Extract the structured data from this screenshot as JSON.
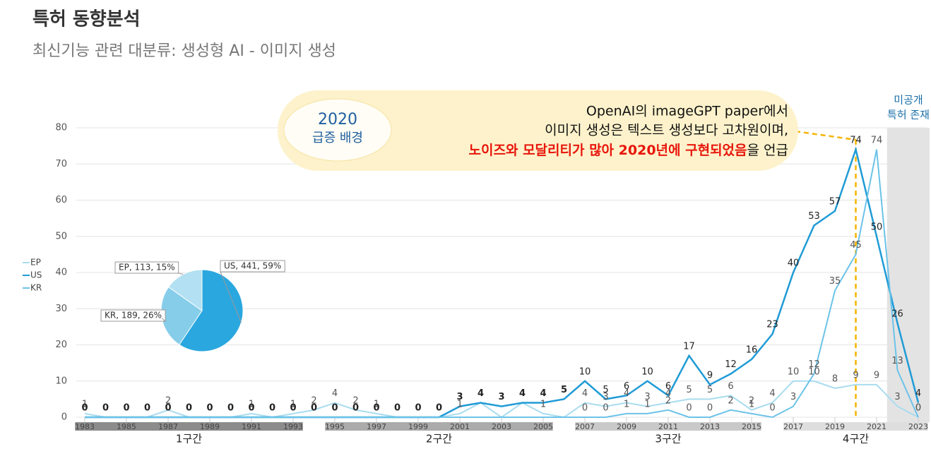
{
  "header": {
    "title": "특허 동향분석",
    "subtitle": "최신기능 관련 대분류: 생성형 AI - 이미지 생성"
  },
  "chart_data": [
    {
      "type": "line",
      "x": [
        1983,
        1984,
        1985,
        1986,
        1987,
        1988,
        1989,
        1990,
        1991,
        1992,
        1993,
        1994,
        1995,
        1996,
        1997,
        1998,
        1999,
        2000,
        2001,
        2002,
        2003,
        2004,
        2005,
        2006,
        2007,
        2008,
        2009,
        2010,
        2011,
        2012,
        2013,
        2014,
        2015,
        2016,
        2017,
        2018,
        2019,
        2020,
        2021,
        2022,
        2023
      ],
      "series": [
        {
          "name": "EP",
          "color": "#a9dcef",
          "values": [
            1,
            0,
            0,
            0,
            2,
            0,
            0,
            0,
            1,
            0,
            1,
            2,
            4,
            2,
            1,
            0,
            0,
            0,
            1,
            4,
            0,
            4,
            1,
            0,
            4,
            3,
            4,
            3,
            4,
            5,
            5,
            6,
            2,
            4,
            10,
            10,
            8,
            9,
            9,
            3,
            0
          ]
        },
        {
          "name": "US",
          "color": "#1f9bd6",
          "values": [
            0,
            0,
            0,
            0,
            0,
            0,
            0,
            0,
            0,
            0,
            0,
            0,
            0,
            0,
            0,
            0,
            0,
            0,
            3,
            4,
            3,
            4,
            4,
            5,
            10,
            5,
            6,
            10,
            6,
            17,
            9,
            12,
            16,
            23,
            40,
            53,
            57,
            74,
            50,
            26,
            4
          ]
        },
        {
          "name": "KR",
          "color": "#6cc3e8",
          "values": [
            0,
            0,
            0,
            0,
            0,
            0,
            0,
            0,
            0,
            0,
            0,
            0,
            0,
            0,
            0,
            0,
            0,
            0,
            0,
            0,
            0,
            0,
            0,
            0,
            0,
            0,
            1,
            1,
            2,
            0,
            0,
            2,
            1,
            0,
            3,
            12,
            35,
            45,
            74,
            13,
            0
          ]
        }
      ],
      "xlim": [
        1983,
        2023
      ],
      "xticks": [
        1983,
        1985,
        1987,
        1989,
        1991,
        1993,
        1995,
        1997,
        1999,
        2001,
        2003,
        2005,
        2007,
        2009,
        2011,
        2013,
        2015,
        2017,
        2019,
        2021,
        2023
      ],
      "ylim": [
        0,
        80
      ],
      "yticks": [
        0,
        10,
        20,
        30,
        40,
        50,
        60,
        70,
        80
      ],
      "grid": true,
      "legend": "left",
      "periods": [
        {
          "label": "1구간",
          "start": 1983,
          "end": 1993,
          "color": "#8c8c8c"
        },
        {
          "label": "2구간",
          "start": 1995,
          "end": 2005,
          "color": "#ababab"
        },
        {
          "label": "3구간",
          "start": 2007,
          "end": 2015,
          "color": "#c9c9c9"
        },
        {
          "label": "4구간",
          "start": 2017,
          "end": 2023,
          "color": "#dedede"
        }
      ],
      "unpublished": {
        "from": 2022,
        "lines": [
          "미공개",
          "특허 존재"
        ],
        "color": "#e3e3e3"
      },
      "annotation": {
        "x": 2020,
        "badge": [
          "2020",
          "급증 배경"
        ],
        "lines": [
          "OpenAI의 imageGPT paper에서",
          "이미지 생성은 텍스트 생성보다 고차원이며,"
        ],
        "highlight": "노이즈와 모달리티가 많아 2020년에 구현되었음",
        "tail": "을 언급",
        "color": "#f5b400"
      }
    },
    {
      "type": "pie",
      "categories": [
        "US",
        "KR",
        "EP"
      ],
      "values": [
        441,
        189,
        113
      ],
      "value_labels": [
        "US, 441, 59%",
        "KR, 189, 26%",
        "EP, 113, 15%"
      ],
      "colors": [
        "#2aa7df",
        "#86cdea",
        "#b3e0f2"
      ]
    }
  ]
}
